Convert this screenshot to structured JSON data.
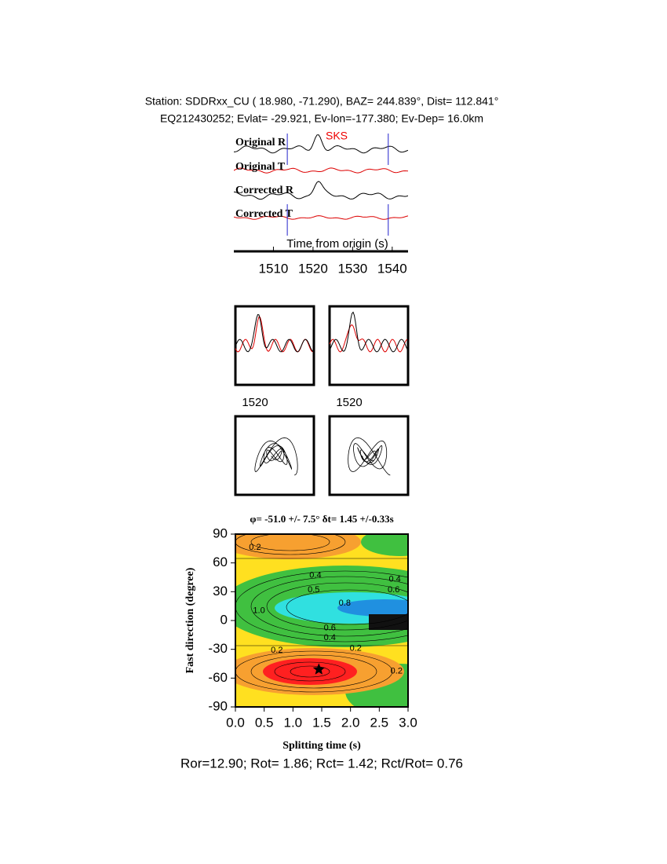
{
  "header": {
    "line1": "Station: SDDRxx_CU (  18.980,  -71.290), BAZ=  244.839°, Dist=  112.841°",
    "line2": "EQ212430252; Evlat= -29.921, Ev-lon=-177.380; Ev-Dep= 16.0km"
  },
  "traces": {
    "labels": [
      "Original R",
      "Original T",
      "Corrected R",
      "Corrected T"
    ],
    "phase": "SKS",
    "axis_label": "Time from origin (s)",
    "xlim": [
      1500,
      1544
    ],
    "xticks": [
      1510,
      1520,
      1530,
      1540
    ],
    "window": [
      1513.5,
      1539
    ]
  },
  "particle": {
    "tick_labels": [
      "1520",
      "1520"
    ]
  },
  "chart_data": {
    "type": "contour",
    "title": "φ= -51.0 +/- 7.5° δt= 1.45 +/-0.33s",
    "xlabel": "Splitting time (s)",
    "ylabel": "Fast direction (degree)",
    "xlim": [
      0,
      3
    ],
    "ylim": [
      -90,
      90
    ],
    "xticks": [
      {
        "value": 0,
        "label": "0.0"
      },
      {
        "value": 0.5,
        "label": "0.5"
      },
      {
        "value": 1,
        "label": "1.0"
      },
      {
        "value": 1.5,
        "label": "1.5"
      },
      {
        "value": 2,
        "label": "2.0"
      },
      {
        "value": 2.5,
        "label": "2.5"
      },
      {
        "value": 3,
        "label": "3.0"
      }
    ],
    "yticks": [
      90,
      60,
      30,
      0,
      -30,
      -60,
      -90
    ],
    "best": {
      "x": 1.45,
      "y": -51.0
    },
    "contour_labels": [
      {
        "x": 0.34,
        "y": 76,
        "label": "0.2"
      },
      {
        "x": 1.39,
        "y": 47,
        "label": "0.4"
      },
      {
        "x": 1.36,
        "y": 32,
        "label": "0.5"
      },
      {
        "x": 2.77,
        "y": 43,
        "label": "0.4"
      },
      {
        "x": 2.75,
        "y": 32,
        "label": "0.6"
      },
      {
        "x": 1.9,
        "y": 18,
        "label": "0.8"
      },
      {
        "x": 0.41,
        "y": 10,
        "label": "1.0"
      },
      {
        "x": 1.64,
        "y": -8,
        "label": "0.6"
      },
      {
        "x": 1.64,
        "y": -18,
        "label": "0.4"
      },
      {
        "x": 0.72,
        "y": -31,
        "label": "0.2"
      },
      {
        "x": 2.09,
        "y": -29,
        "label": "0.2"
      },
      {
        "x": 2.8,
        "y": -53,
        "label": "0.2"
      }
    ]
  },
  "footer": "Ror=12.90; Rot= 1.86; Rct= 1.42; Rct/Rot= 0.76"
}
